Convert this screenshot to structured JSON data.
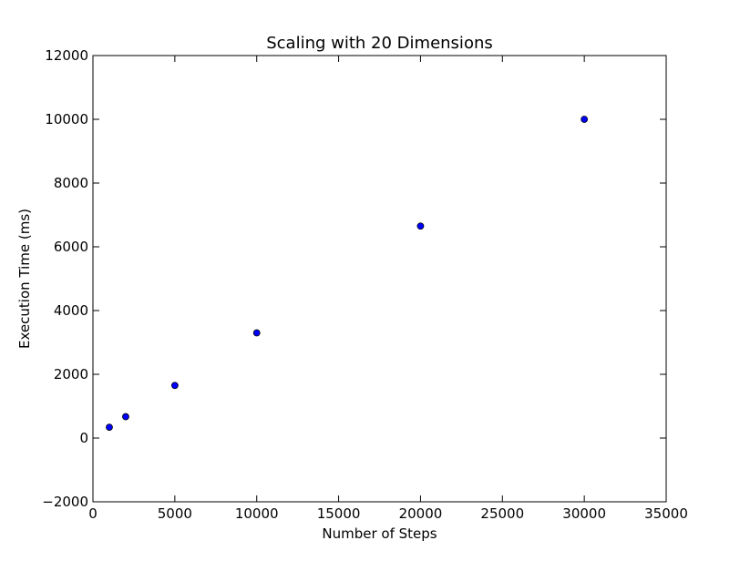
{
  "chart_data": {
    "type": "scatter",
    "title": "Scaling with 20 Dimensions",
    "xlabel": "Number of Steps",
    "ylabel": "Execution Time (ms)",
    "xlim": [
      0,
      35000
    ],
    "ylim": [
      -2000,
      12000
    ],
    "xticks": [
      0,
      5000,
      10000,
      15000,
      20000,
      25000,
      30000,
      35000
    ],
    "xtick_labels": [
      "0",
      "5000",
      "10000",
      "15000",
      "20000",
      "25000",
      "30000",
      "35000"
    ],
    "yticks": [
      -2000,
      0,
      2000,
      4000,
      6000,
      8000,
      10000,
      12000
    ],
    "ytick_labels": [
      "−2000",
      "0",
      "2000",
      "4000",
      "6000",
      "8000",
      "10000",
      "12000"
    ],
    "grid": false,
    "series": [
      {
        "color": "#0000ff",
        "points": [
          {
            "x": 1000,
            "y": 340
          },
          {
            "x": 2000,
            "y": 670
          },
          {
            "x": 5000,
            "y": 1650
          },
          {
            "x": 10000,
            "y": 3300
          },
          {
            "x": 20000,
            "y": 6650
          },
          {
            "x": 30000,
            "y": 10000
          }
        ]
      }
    ]
  }
}
